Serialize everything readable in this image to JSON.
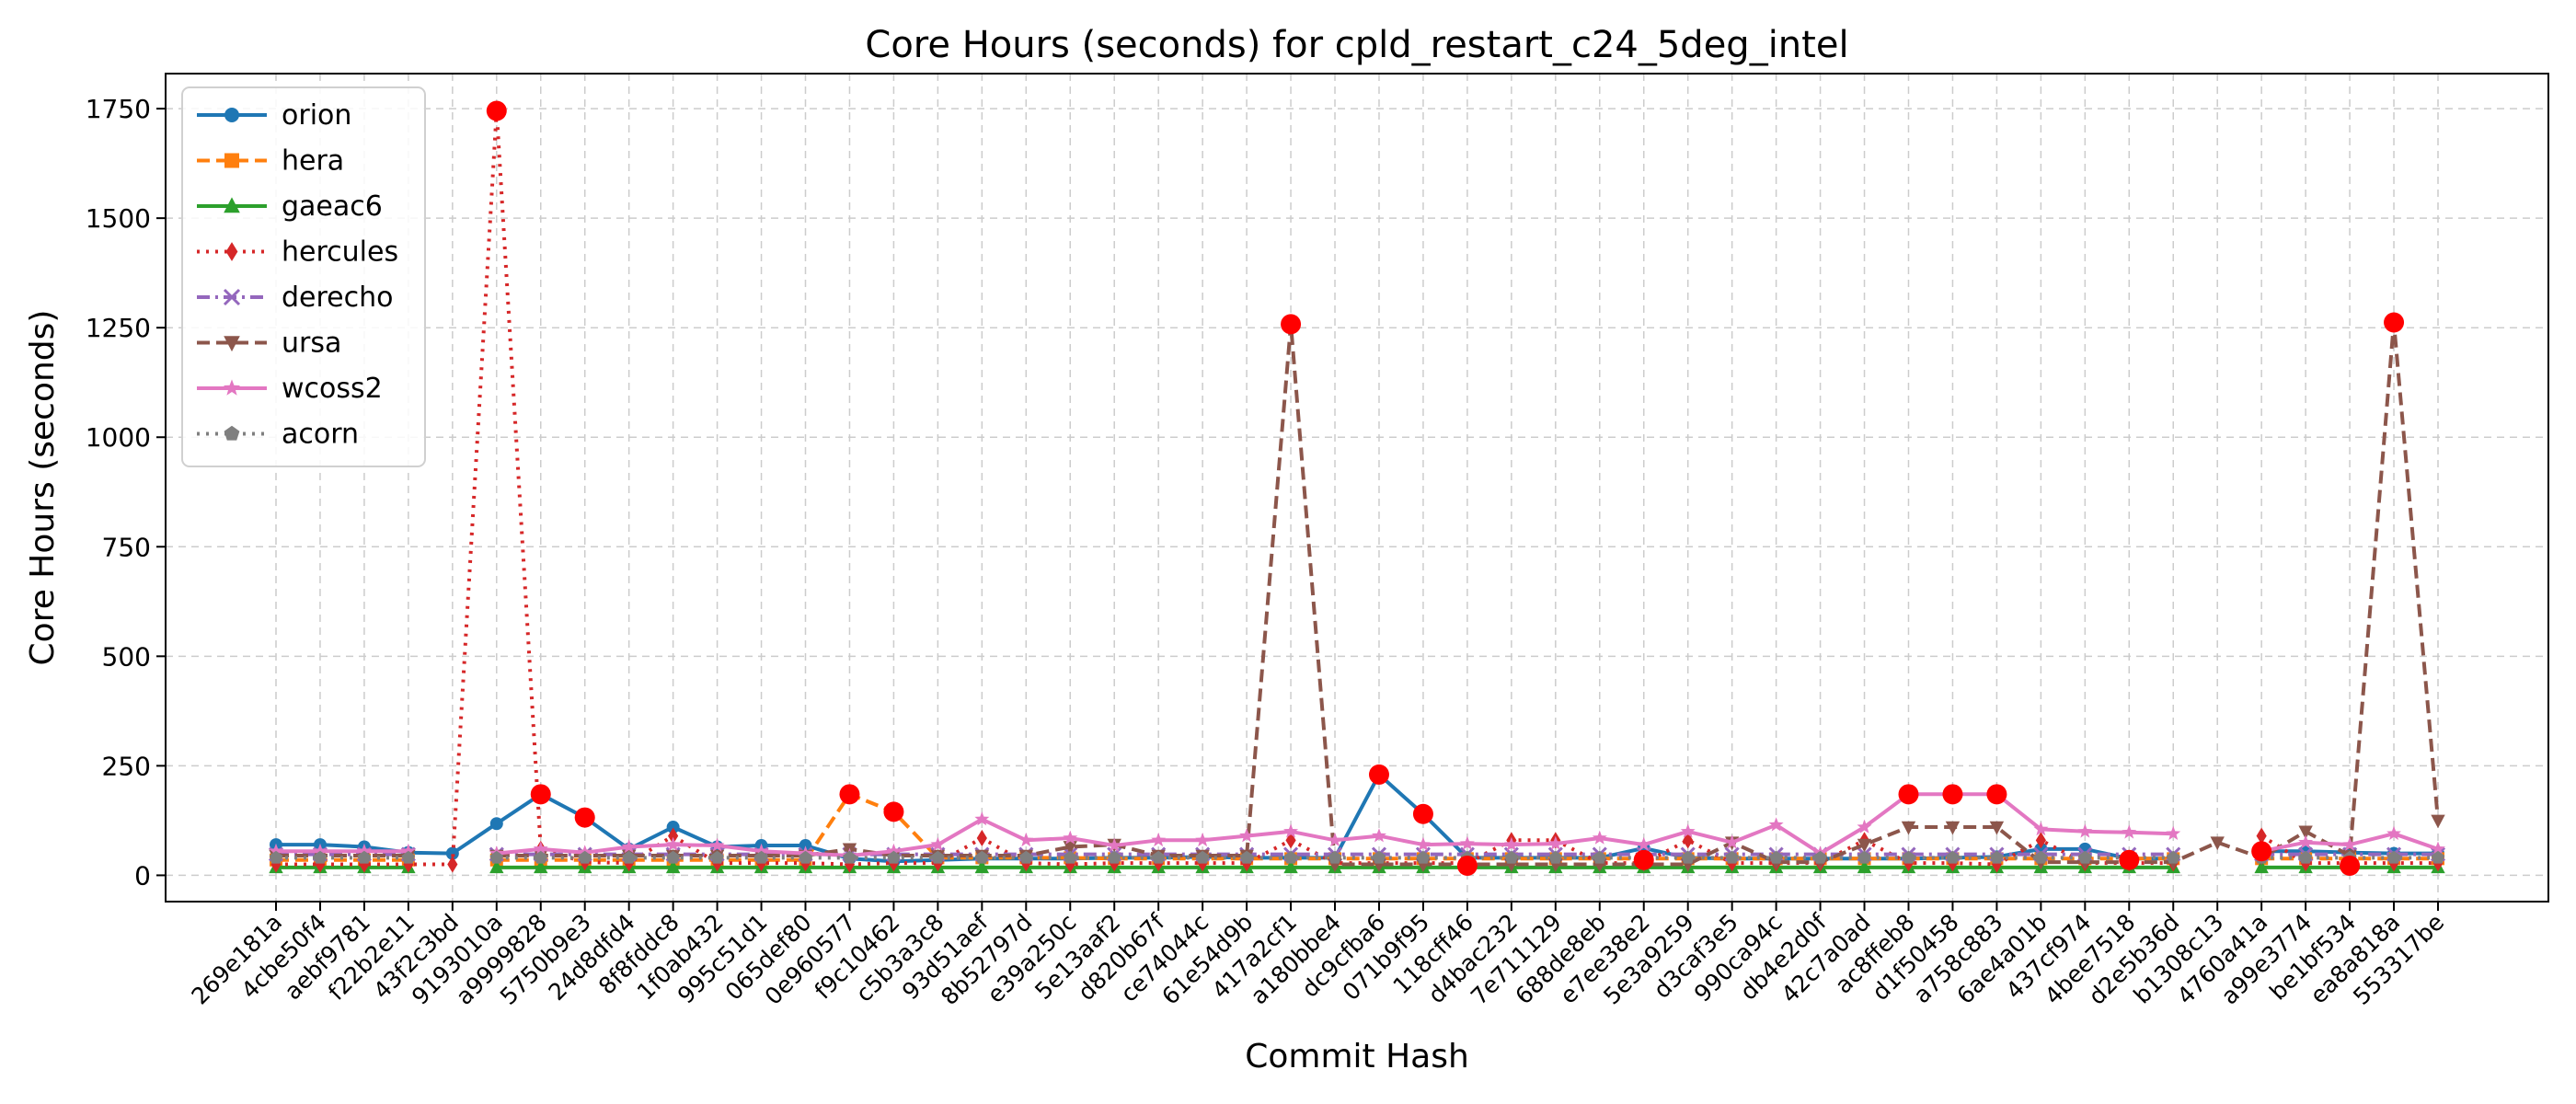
{
  "chart_data": {
    "type": "line",
    "title": "Core Hours (seconds) for cpld_restart_c24_5deg_intel",
    "xlabel": "Commit Hash",
    "ylabel": "Core Hours (seconds)",
    "ylim": [
      -60,
      1830
    ],
    "yticks": [
      0,
      250,
      500,
      750,
      1000,
      1250,
      1500,
      1750
    ],
    "grid": true,
    "legend_position": "top-left",
    "highlight_color": "#ff0000",
    "categories": [
      "269e181a",
      "4cbe50f4",
      "aebf9781",
      "f22b2e11",
      "43f2c3bd",
      "9193010a",
      "a9999828",
      "5750b9e3",
      "24d8dfd4",
      "8f8fddc8",
      "1f0ab432",
      "995c51d1",
      "065def80",
      "0e960577",
      "f9c10462",
      "c5b3a3c8",
      "93d51aef",
      "8b52797d",
      "e39a250c",
      "5e13aaf2",
      "d820b67f",
      "ce74044c",
      "61e54d9b",
      "417a2cf1",
      "a180bbe4",
      "dc9cfba6",
      "071b9f95",
      "118cff46",
      "d4bac232",
      "7e711129",
      "688de8eb",
      "e7ee38e2",
      "5e3a9259",
      "d3caf3e5",
      "990ca94c",
      "db4e2d0f",
      "42c7a0ad",
      "ac8ffeb8",
      "d1f50458",
      "a758c883",
      "6ae4a01b",
      "437cf974",
      "4bee7518",
      "d2e5b36d",
      "b1308c13",
      "4760a41a",
      "a99e3774",
      "be1bf534",
      "ea8a818a",
      "553317be"
    ],
    "series": [
      {
        "name": "orion",
        "color": "#1f77b4",
        "dash": "solid",
        "marker": "circle",
        "values": [
          70,
          70,
          65,
          52,
          50,
          118,
          185,
          132,
          60,
          110,
          65,
          68,
          68,
          38,
          32,
          35,
          38,
          38,
          38,
          40,
          40,
          42,
          40,
          40,
          40,
          230,
          140,
          40,
          40,
          40,
          40,
          62,
          40,
          38,
          38,
          38,
          38,
          38,
          40,
          42,
          60,
          60,
          38,
          38,
          null,
          55,
          55,
          52,
          50,
          50
        ]
      },
      {
        "name": "hera",
        "color": "#ff7f0e",
        "dash": "dashed",
        "marker": "square",
        "values": [
          35,
          35,
          35,
          35,
          null,
          35,
          35,
          35,
          35,
          35,
          35,
          35,
          35,
          185,
          145,
          40,
          40,
          40,
          40,
          38,
          38,
          38,
          38,
          38,
          38,
          38,
          38,
          38,
          38,
          38,
          38,
          38,
          38,
          38,
          38,
          38,
          38,
          38,
          38,
          38,
          38,
          38,
          38,
          38,
          null,
          38,
          38,
          38,
          38,
          38
        ]
      },
      {
        "name": "gaeac6",
        "color": "#2ca02c",
        "dash": "solid",
        "marker": "triangle-up",
        "values": [
          18,
          18,
          18,
          18,
          null,
          18,
          18,
          18,
          18,
          18,
          18,
          18,
          18,
          18,
          18,
          18,
          18,
          18,
          18,
          18,
          18,
          18,
          18,
          18,
          18,
          18,
          18,
          18,
          18,
          18,
          18,
          18,
          18,
          18,
          18,
          18,
          18,
          18,
          18,
          18,
          18,
          18,
          18,
          18,
          null,
          18,
          18,
          18,
          18,
          18
        ]
      },
      {
        "name": "hercules",
        "color": "#d62728",
        "dash": "dotted",
        "marker": "diamond",
        "values": [
          25,
          25,
          25,
          25,
          25,
          1745,
          60,
          30,
          28,
          90,
          28,
          28,
          28,
          25,
          28,
          28,
          85,
          28,
          25,
          28,
          28,
          28,
          28,
          80,
          28,
          28,
          28,
          28,
          80,
          80,
          28,
          28,
          80,
          28,
          28,
          28,
          80,
          28,
          28,
          25,
          80,
          28,
          28,
          28,
          null,
          90,
          28,
          28,
          28,
          28
        ]
      },
      {
        "name": "derecho",
        "color": "#9467bd",
        "dash": "dashdot",
        "marker": "x",
        "values": [
          48,
          48,
          48,
          48,
          null,
          48,
          48,
          48,
          48,
          48,
          48,
          48,
          48,
          48,
          48,
          48,
          48,
          48,
          48,
          48,
          48,
          48,
          48,
          48,
          48,
          48,
          48,
          48,
          48,
          48,
          48,
          48,
          48,
          48,
          48,
          48,
          48,
          48,
          48,
          48,
          48,
          48,
          48,
          48,
          null,
          48,
          48,
          48,
          48,
          48
        ]
      },
      {
        "name": "ursa",
        "color": "#8c564b",
        "dash": "dashed",
        "marker": "triangle-down",
        "values": [
          45,
          45,
          45,
          45,
          null,
          45,
          45,
          45,
          45,
          45,
          45,
          45,
          45,
          60,
          45,
          45,
          45,
          45,
          65,
          70,
          45,
          45,
          45,
          1258,
          25,
          25,
          25,
          25,
          25,
          25,
          25,
          25,
          25,
          75,
          30,
          30,
          70,
          110,
          110,
          110,
          30,
          30,
          30,
          30,
          75,
          40,
          100,
          45,
          1262,
          125
        ]
      },
      {
        "name": "wcoss2",
        "color": "#e377c2",
        "dash": "solid",
        "marker": "star",
        "values": [
          55,
          55,
          55,
          55,
          null,
          50,
          60,
          52,
          65,
          70,
          68,
          55,
          50,
          45,
          55,
          70,
          128,
          80,
          85,
          68,
          80,
          80,
          90,
          100,
          80,
          90,
          70,
          72,
          70,
          72,
          85,
          70,
          100,
          75,
          115,
          50,
          110,
          185,
          185,
          185,
          105,
          100,
          98,
          95,
          null,
          55,
          75,
          70,
          95,
          60
        ]
      },
      {
        "name": "acorn",
        "color": "#7f7f7f",
        "dash": "dotted",
        "marker": "pentagon",
        "values": [
          40,
          40,
          40,
          40,
          null,
          40,
          40,
          40,
          40,
          40,
          40,
          40,
          40,
          40,
          40,
          40,
          40,
          40,
          40,
          40,
          40,
          40,
          40,
          40,
          40,
          40,
          40,
          40,
          40,
          40,
          40,
          40,
          40,
          40,
          40,
          40,
          40,
          40,
          40,
          40,
          40,
          40,
          40,
          40,
          null,
          40,
          40,
          40,
          40,
          40
        ]
      }
    ],
    "highlights": [
      {
        "x": "9193010a",
        "y": 1745
      },
      {
        "x": "a9999828",
        "y": 185
      },
      {
        "x": "5750b9e3",
        "y": 132
      },
      {
        "x": "0e960577",
        "y": 185
      },
      {
        "x": "f9c10462",
        "y": 145
      },
      {
        "x": "417a2cf1",
        "y": 1258
      },
      {
        "x": "dc9cfba6",
        "y": 230
      },
      {
        "x": "071b9f95",
        "y": 140
      },
      {
        "x": "118cff46",
        "y": 22
      },
      {
        "x": "e7ee38e2",
        "y": 35
      },
      {
        "x": "ac8ffeb8",
        "y": 185
      },
      {
        "x": "d1f50458",
        "y": 185
      },
      {
        "x": "a758c883",
        "y": 185
      },
      {
        "x": "4bee7518",
        "y": 35
      },
      {
        "x": "4760a41a",
        "y": 55
      },
      {
        "x": "be1bf534",
        "y": 22
      },
      {
        "x": "ea8a818a",
        "y": 1262
      }
    ]
  }
}
